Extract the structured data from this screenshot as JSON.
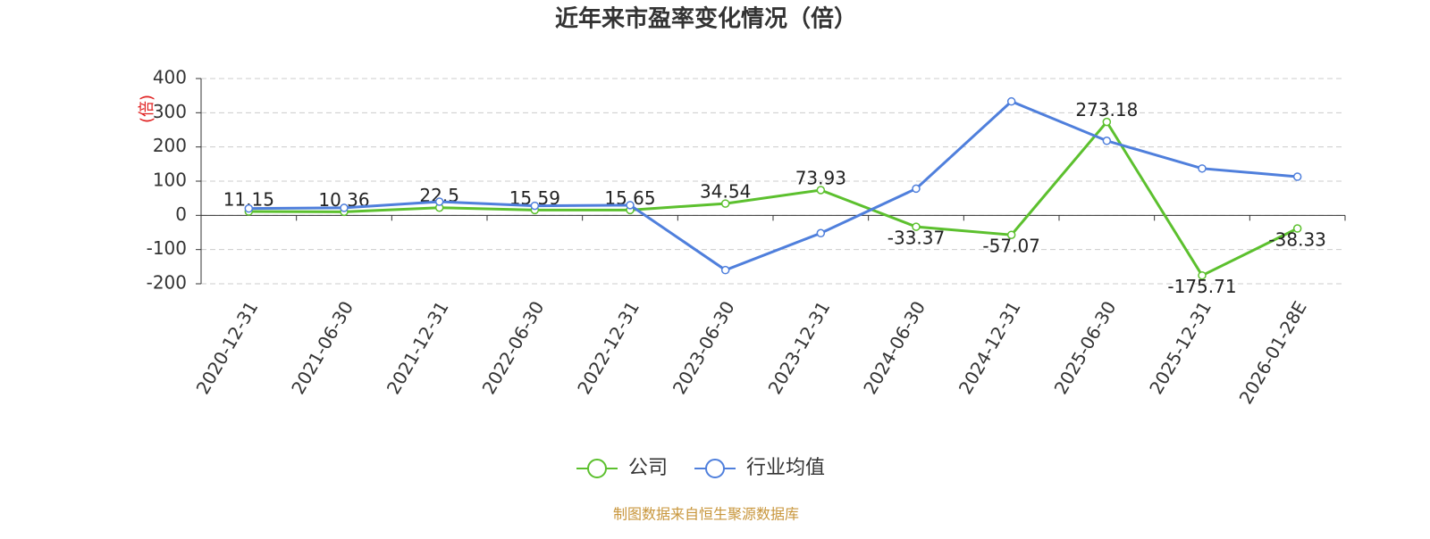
{
  "chart_data": {
    "type": "line",
    "title": "近年来市盈率变化情况（倍）",
    "y_label": "(倍)",
    "categories": [
      "2020-12-31",
      "2021-06-30",
      "2021-12-31",
      "2022-06-30",
      "2022-12-31",
      "2023-06-30",
      "2023-12-31",
      "2024-06-30",
      "2024-12-31",
      "2025-06-30",
      "2025-12-31",
      "2026-01-28E"
    ],
    "series": [
      {
        "name": "公司",
        "color": "#5cc02e",
        "values": [
          11.15,
          10.36,
          22.5,
          15.59,
          15.65,
          34.54,
          73.93,
          -33.37,
          -57.07,
          273.18,
          -175.71,
          -38.33
        ],
        "data_labels": true
      },
      {
        "name": "行业均值",
        "color": "#4f7fdc",
        "values": [
          20,
          22,
          40,
          28,
          30,
          -160,
          -52,
          78,
          333,
          218,
          137,
          113
        ],
        "data_labels": false
      }
    ],
    "ylim": [
      -200,
      400
    ],
    "yticks": [
      -200,
      -100,
      0,
      100,
      200,
      300,
      400
    ],
    "grid": true,
    "source": "制图数据来自恒生聚源数据库"
  }
}
